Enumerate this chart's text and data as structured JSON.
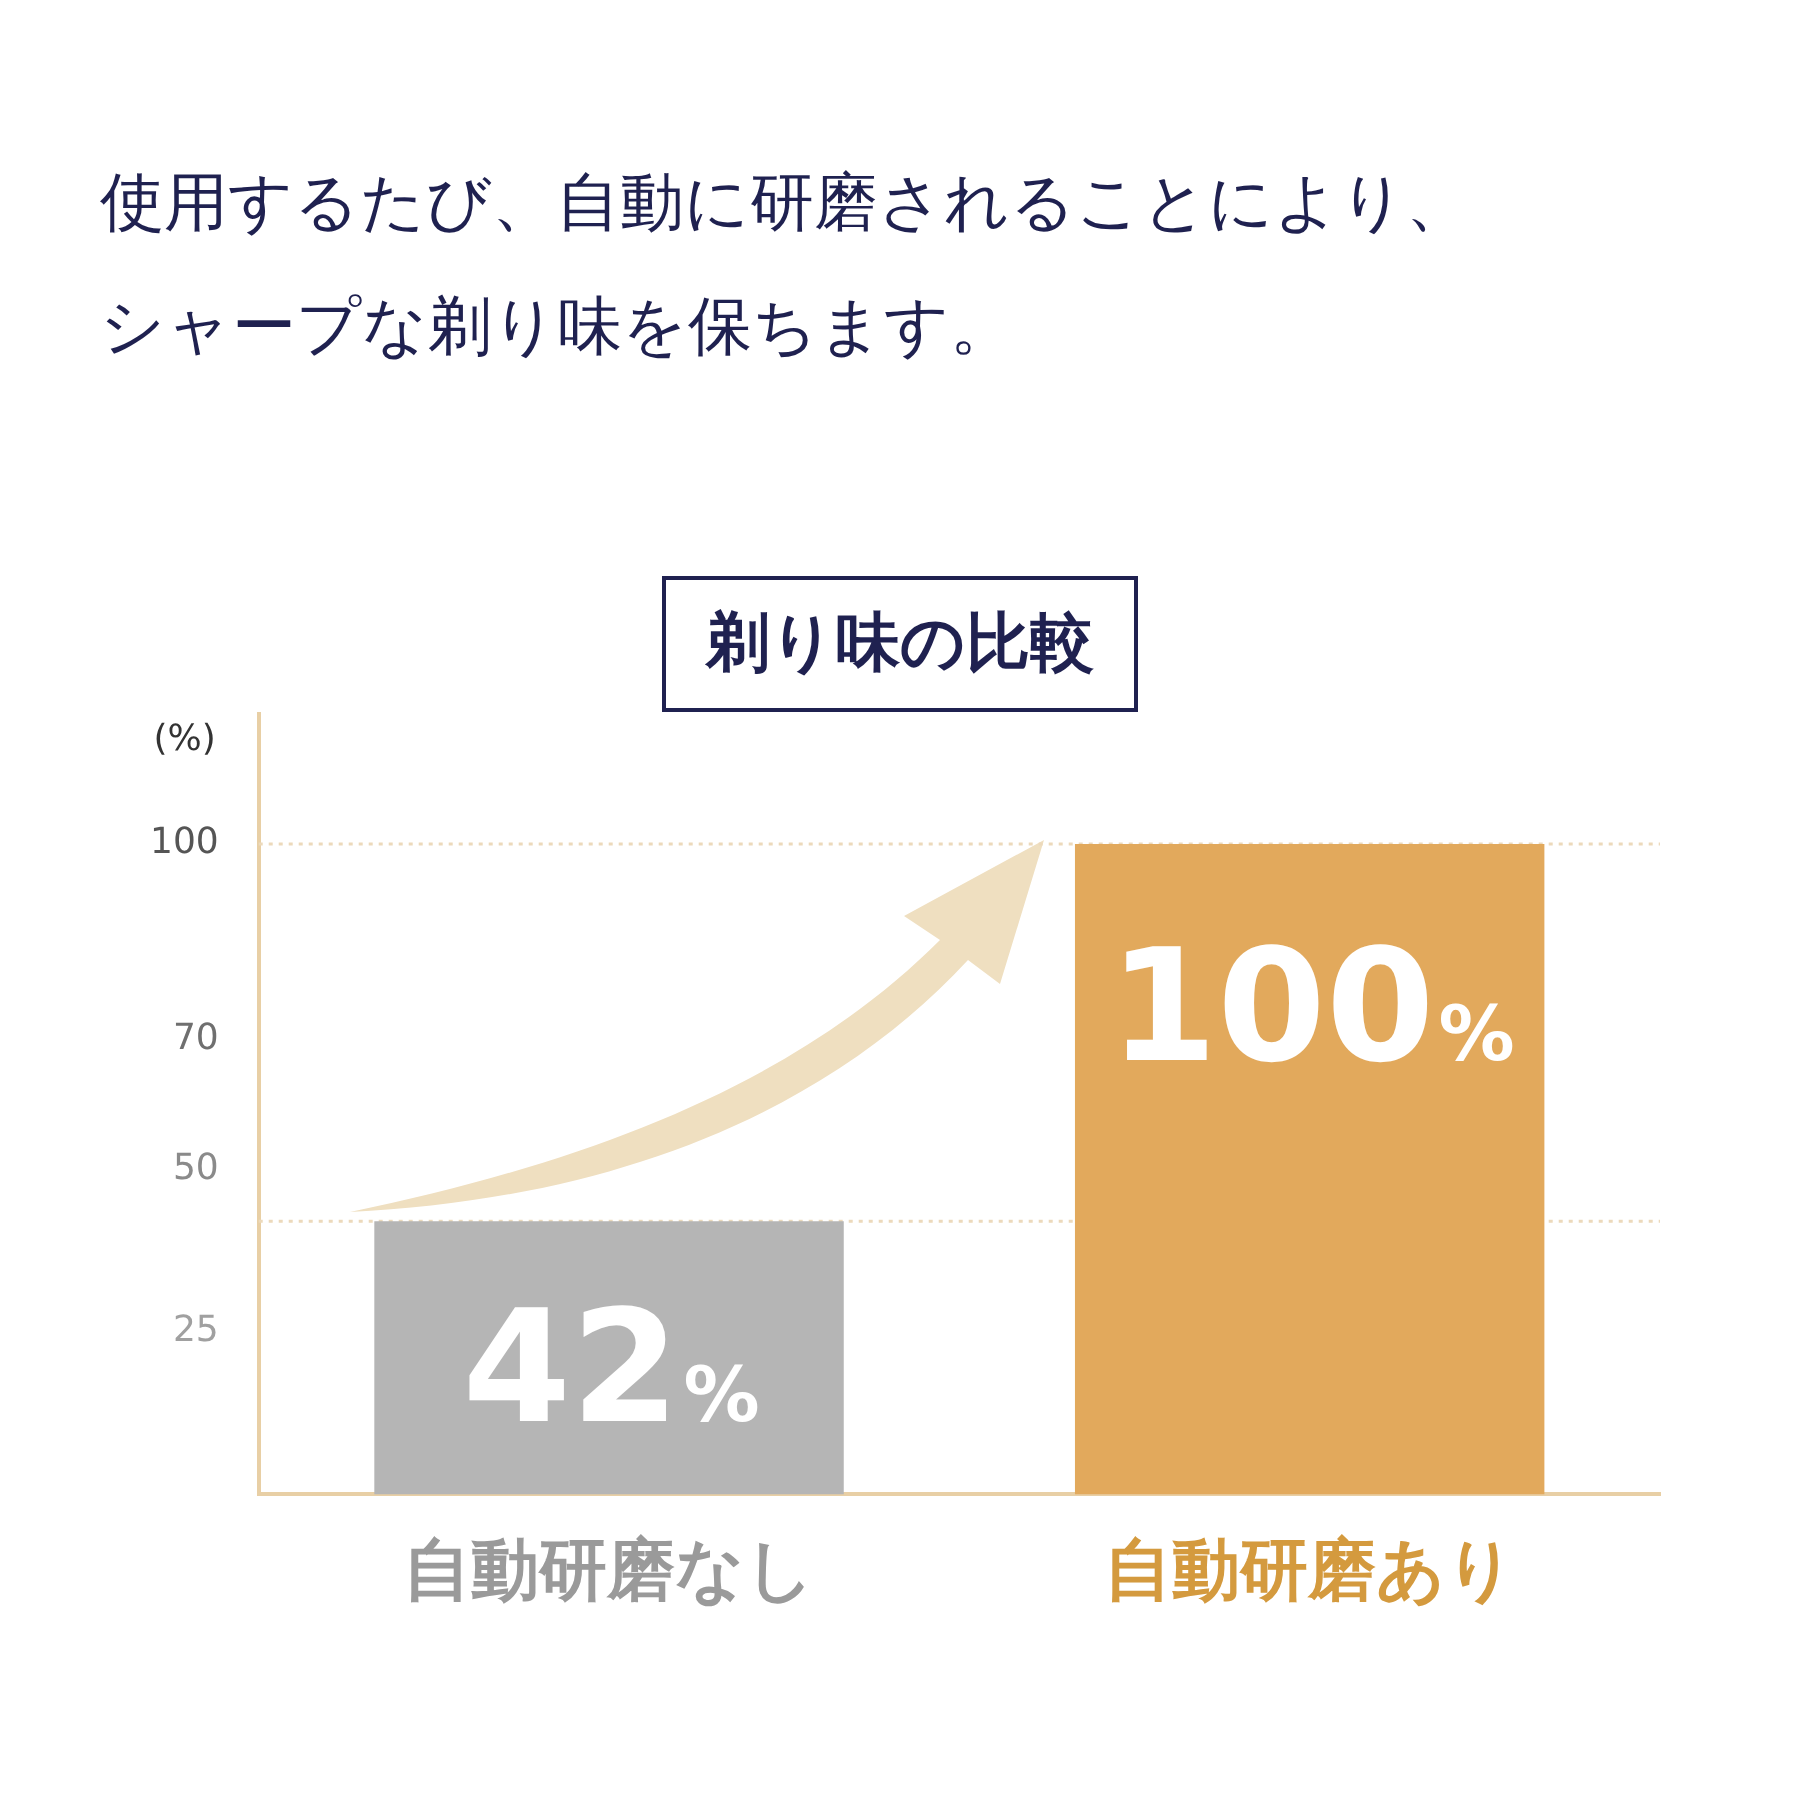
{
  "chart_data": {
    "type": "bar",
    "title": "剃り味の比較",
    "annotations": [
      "使用するたび、自動に研磨されることにより、",
      "シャープな剃り味を保ちます。"
    ],
    "ylabel": "(%)",
    "categories": [
      "自動研磨なし",
      "自動研磨あり"
    ],
    "values": [
      42,
      100
    ],
    "colors": [
      "#b5b5b5",
      "#e2a95c"
    ],
    "value_labels": [
      "42%",
      "100%"
    ],
    "ylim": [
      0,
      120
    ],
    "yticks": [
      25,
      50,
      70,
      100
    ],
    "ref_lines": [
      {
        "axis": "y",
        "value": 100,
        "label": null,
        "color": "#ecd9bb",
        "line_style": "dotted"
      },
      {
        "axis": "y",
        "value": 42,
        "label": null,
        "color": "#ecd9bb",
        "line_style": "dotted"
      }
    ],
    "grid": false,
    "legend": false
  }
}
